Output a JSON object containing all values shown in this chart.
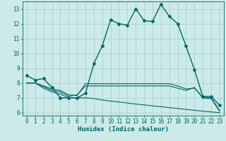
{
  "xlabel": "Humidex (Indice chaleur)",
  "background_color": "#cceae7",
  "grid_color": "#aad4d0",
  "line_color": "#006666",
  "xlim": [
    -0.5,
    23.5
  ],
  "ylim": [
    5.8,
    13.5
  ],
  "yticks": [
    6,
    7,
    8,
    9,
    10,
    11,
    12,
    13
  ],
  "xticks": [
    0,
    1,
    2,
    3,
    4,
    5,
    6,
    7,
    8,
    9,
    10,
    11,
    12,
    13,
    14,
    15,
    16,
    17,
    18,
    19,
    20,
    21,
    22,
    23
  ],
  "line1_x": [
    0,
    1,
    2,
    3,
    4,
    5,
    6,
    7,
    8,
    9,
    10,
    11,
    12,
    13,
    14,
    15,
    16,
    17,
    18,
    19,
    20,
    21,
    22,
    23
  ],
  "line1_y": [
    8.5,
    8.2,
    8.3,
    7.7,
    7.0,
    7.0,
    7.0,
    7.3,
    9.3,
    10.5,
    12.25,
    12.0,
    11.9,
    13.0,
    12.2,
    12.15,
    13.3,
    12.5,
    12.0,
    10.5,
    8.9,
    7.1,
    7.1,
    6.5
  ],
  "line2_x": [
    0,
    1,
    2,
    3,
    4,
    5,
    6,
    7,
    8,
    9,
    10,
    11,
    12,
    13,
    14,
    15,
    16,
    17,
    18,
    19,
    20,
    21,
    22,
    23
  ],
  "line2_y": [
    8.0,
    8.0,
    7.8,
    7.6,
    7.5,
    7.2,
    7.15,
    7.95,
    7.95,
    7.95,
    7.95,
    7.95,
    7.95,
    7.95,
    7.95,
    7.95,
    7.95,
    7.95,
    7.8,
    7.6,
    7.65,
    7.05,
    7.0,
    6.15
  ],
  "line3_x": [
    0,
    1,
    2,
    3,
    4,
    5,
    6,
    7,
    8,
    9,
    10,
    11,
    12,
    13,
    14,
    15,
    16,
    17,
    18,
    19,
    20,
    21,
    22,
    23
  ],
  "line3_y": [
    8.0,
    8.0,
    7.75,
    7.5,
    7.4,
    7.1,
    7.2,
    7.8,
    7.8,
    7.8,
    7.8,
    7.8,
    7.8,
    7.8,
    7.8,
    7.8,
    7.8,
    7.8,
    7.65,
    7.5,
    7.7,
    6.98,
    6.95,
    6.1
  ],
  "line4_x": [
    0,
    1,
    2,
    3,
    4,
    5,
    6,
    7,
    8,
    9,
    10,
    11,
    12,
    13,
    14,
    15,
    16,
    17,
    18,
    19,
    20,
    21,
    22,
    23
  ],
  "line4_y": [
    8.0,
    8.0,
    7.65,
    7.4,
    7.25,
    7.0,
    7.0,
    7.0,
    6.95,
    6.85,
    6.78,
    6.72,
    6.65,
    6.58,
    6.52,
    6.46,
    6.4,
    6.34,
    6.28,
    6.22,
    6.16,
    6.1,
    6.05,
    6.0
  ]
}
